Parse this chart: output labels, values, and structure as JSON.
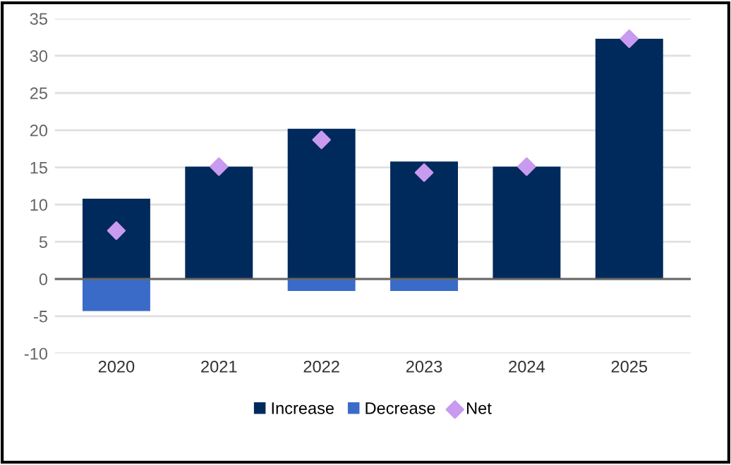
{
  "chart_data": {
    "type": "bar",
    "stacked": true,
    "categories": [
      "2020",
      "2021",
      "2022",
      "2023",
      "2024",
      "2025"
    ],
    "series": [
      {
        "name": "Increase",
        "color": "#002a5c",
        "values": [
          10.8,
          15.1,
          20.2,
          15.8,
          15.1,
          32.3
        ]
      },
      {
        "name": "Decrease",
        "color": "#3a6bc9",
        "values": [
          -4.3,
          null,
          -1.6,
          -1.6,
          null,
          null
        ]
      },
      {
        "name": "Net",
        "type": "scatter",
        "color": "#c89af0",
        "marker": "diamond",
        "values": [
          6.5,
          15.1,
          18.7,
          14.3,
          15.1,
          32.3
        ]
      }
    ],
    "ylim": [
      -10,
      35
    ],
    "yticks": [
      -10,
      -5,
      0,
      5,
      10,
      15,
      20,
      25,
      30,
      35
    ],
    "grid": "y",
    "legend": "bottom"
  }
}
